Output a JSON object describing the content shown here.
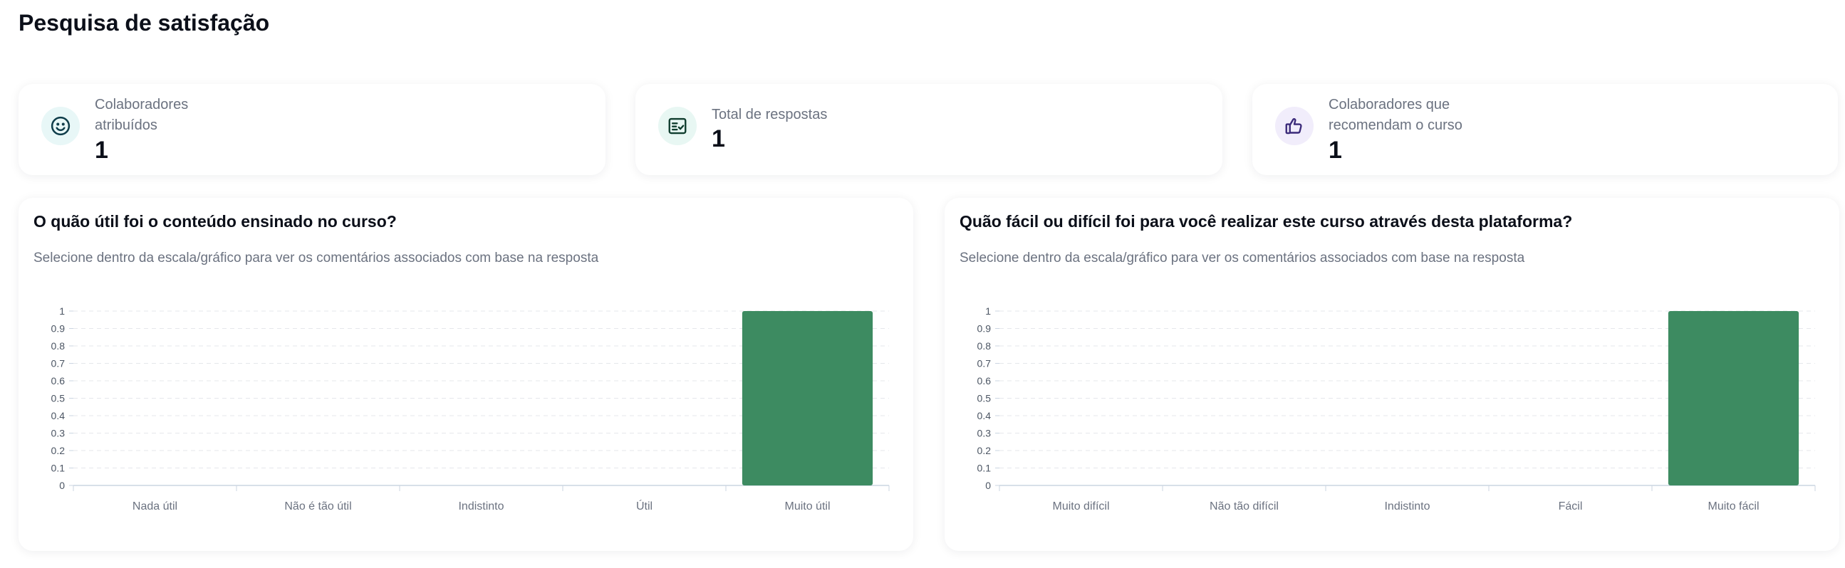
{
  "page": {
    "title": "Pesquisa de satisfação"
  },
  "stats": [
    {
      "label_lines": [
        "Colaboradores",
        "atribuídos"
      ],
      "value": "1",
      "icon": "smile-icon",
      "icon_bg": "#e8f7f7",
      "icon_color": "#0f3d4a"
    },
    {
      "label_lines": [
        "Total de respostas"
      ],
      "value": "1",
      "icon": "checklist-icon",
      "icon_bg": "#e8f7f3",
      "icon_color": "#0f3d2e"
    },
    {
      "label_lines": [
        "Colaboradores que",
        "recomendam o curso"
      ],
      "value": "1",
      "icon": "thumbs-up-icon",
      "icon_bg": "#f1edfb",
      "icon_color": "#3b2a7a"
    }
  ],
  "charts": [
    {
      "question": "O quão útil foi o conteúdo ensinado no curso?",
      "hint": "Selecione dentro da escala/gráfico para ver os comentários associados com base na resposta"
    },
    {
      "question": "Quão fácil ou difícil foi para você realizar este curso através desta plataforma?",
      "hint": "Selecione dentro da escala/gráfico para ver os comentários associados com base na resposta"
    }
  ],
  "chart_data": [
    {
      "type": "bar",
      "categories": [
        "Nada útil",
        "Não é tão útil",
        "Indistinto",
        "Útil",
        "Muito útil"
      ],
      "values": [
        0,
        0,
        0,
        0,
        1
      ],
      "ylim": [
        0,
        1
      ],
      "yticks": [
        "0",
        "0.1",
        "0.2",
        "0.3",
        "0.4",
        "0.5",
        "0.6",
        "0.7",
        "0.8",
        "0.9",
        "1"
      ],
      "grid": true,
      "bar_color": "#3d8b61"
    },
    {
      "type": "bar",
      "categories": [
        "Muito difícil",
        "Não tão difícil",
        "Indistinto",
        "Fácil",
        "Muito fácil"
      ],
      "values": [
        0,
        0,
        0,
        0,
        1
      ],
      "ylim": [
        0,
        1
      ],
      "yticks": [
        "0",
        "0.1",
        "0.2",
        "0.3",
        "0.4",
        "0.5",
        "0.6",
        "0.7",
        "0.8",
        "0.9",
        "1"
      ],
      "grid": true,
      "bar_color": "#3d8b61"
    }
  ]
}
